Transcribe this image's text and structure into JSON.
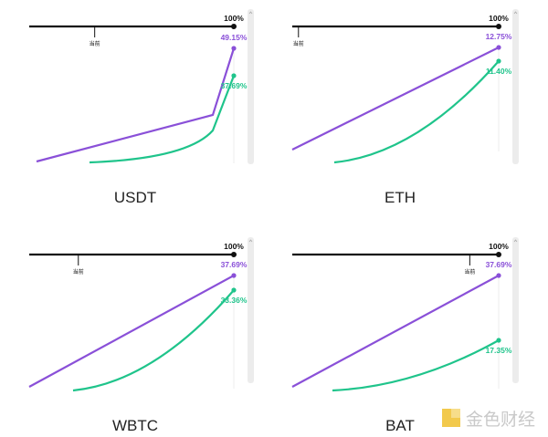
{
  "colors": {
    "purple": "#8a50d8",
    "green": "#1fc48b",
    "bar": "#111111",
    "scrollbar": "#ececec"
  },
  "labels": {
    "full_utilization": "100%",
    "current_marker": "当前"
  },
  "watermark": {
    "text": "金色财经",
    "icon": "jinse-logo-icon"
  },
  "chart_data": [
    {
      "type": "line",
      "title": "USDT",
      "current_utilization": 0.32,
      "series": [
        {
          "end_label": "49.15%",
          "end_value": 49.15
        },
        {
          "end_label": "37.69%",
          "end_value": 37.69
        }
      ]
    },
    {
      "type": "line",
      "title": "ETH",
      "current_utilization": 0.03,
      "series": [
        {
          "end_label": "12.75%",
          "end_value": 12.75
        },
        {
          "end_label": "11.40%",
          "end_value": 11.4
        }
      ]
    },
    {
      "type": "line",
      "title": "WBTC",
      "current_utilization": 0.24,
      "series": [
        {
          "end_label": "37.69%",
          "end_value": 37.69
        },
        {
          "end_label": "33.36%",
          "end_value": 33.36
        }
      ]
    },
    {
      "type": "line",
      "title": "BAT",
      "current_utilization": 0.86,
      "series": [
        {
          "end_label": "37.69%",
          "end_value": 37.69
        },
        {
          "end_label": "17.35%",
          "end_value": 17.35
        }
      ]
    }
  ]
}
